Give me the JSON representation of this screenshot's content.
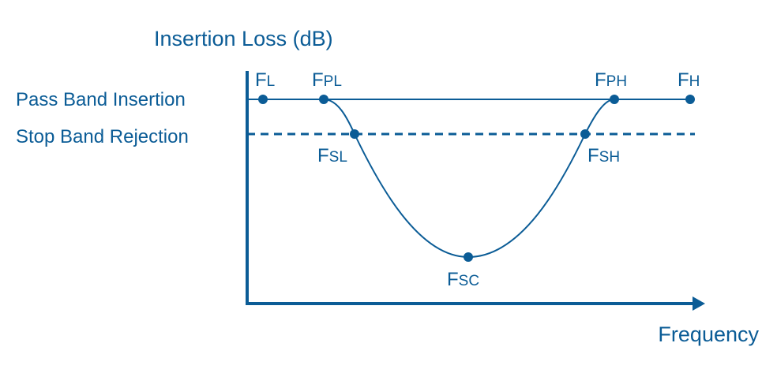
{
  "colors": {
    "primary": "#0b5c96",
    "background": "#ffffff"
  },
  "y_axis_label": "Insertion Loss (dB)",
  "x_axis_label": "Frequency",
  "levels": {
    "pass_band": "Pass Band Insertion",
    "stop_band": "Stop Band Rejection"
  },
  "points": {
    "fl": {
      "main": "F",
      "sub": "L"
    },
    "fpl": {
      "main": "F",
      "sub": "PL"
    },
    "fph": {
      "main": "F",
      "sub": "PH"
    },
    "fh": {
      "main": "F",
      "sub": "H"
    },
    "fsl": {
      "main": "F",
      "sub": "SL"
    },
    "fsh": {
      "main": "F",
      "sub": "SH"
    },
    "fsc": {
      "main": "F",
      "sub": "SC"
    }
  }
}
